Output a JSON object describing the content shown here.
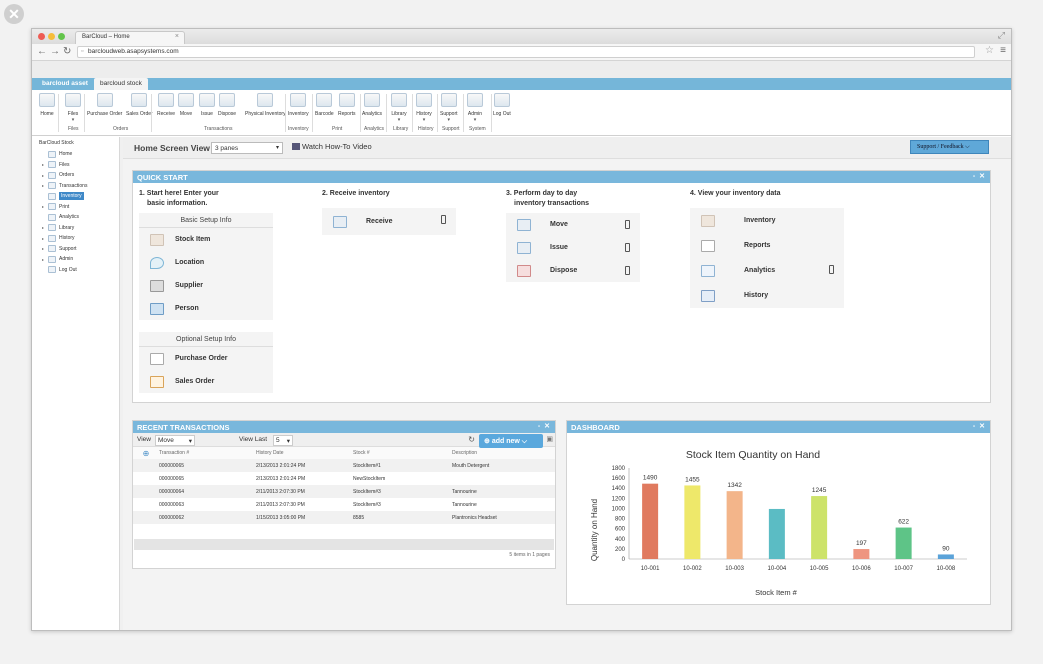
{
  "browser": {
    "tab_title": "BarCloud – Home",
    "url": "barcloudweb.asapsystems.com"
  },
  "app_tabs": [
    "barcloud asset",
    "barcloud stock"
  ],
  "ribbon": {
    "buttons": [
      {
        "label": "Home",
        "icon": "home-icon"
      },
      {
        "label": "Files",
        "icon": "folder-icon",
        "dropdown": "▾"
      },
      {
        "label": "Purchase Order",
        "icon": "document-icon"
      },
      {
        "label": "Sales Order",
        "icon": "dollar-document-icon"
      },
      {
        "label": "Receive",
        "icon": "receive-box-icon"
      },
      {
        "label": "Move",
        "icon": "move-box-icon"
      },
      {
        "label": "Issue",
        "icon": "issue-box-icon"
      },
      {
        "label": "Dispose",
        "icon": "dispose-icon"
      },
      {
        "label": "Physical Inventory",
        "icon": "physical-inventory-icon"
      },
      {
        "label": "Inventory",
        "icon": "inventory-box-icon"
      },
      {
        "label": "Barcode",
        "icon": "barcode-icon"
      },
      {
        "label": "Reports",
        "icon": "reports-icon"
      },
      {
        "label": "Analytics",
        "icon": "analytics-icon"
      },
      {
        "label": "Library",
        "icon": "library-icon",
        "dropdown": "▾"
      },
      {
        "label": "History",
        "icon": "history-book-icon",
        "dropdown": "▾"
      },
      {
        "label": "Support",
        "icon": "support-icon",
        "dropdown": "▾"
      },
      {
        "label": "Admin",
        "icon": "admin-user-icon",
        "dropdown": "▾"
      },
      {
        "label": "Log Out",
        "icon": "power-icon"
      }
    ],
    "groups": [
      "Files",
      "Orders",
      "Transactions",
      "Inventory",
      "Print",
      "Analytics",
      "Library",
      "History",
      "Support",
      "System"
    ]
  },
  "tree": {
    "root": "BarCloud Stock",
    "items": [
      {
        "label": "Home",
        "expand": ""
      },
      {
        "label": "Files",
        "expand": "▸"
      },
      {
        "label": "Orders",
        "expand": "▸"
      },
      {
        "label": "Transactions",
        "expand": "▸"
      },
      {
        "label": "Inventory",
        "expand": ""
      },
      {
        "label": "Print",
        "expand": "▸"
      },
      {
        "label": "Analytics",
        "expand": ""
      },
      {
        "label": "Library",
        "expand": "▸"
      },
      {
        "label": "History",
        "expand": "▸"
      },
      {
        "label": "Support",
        "expand": "▸"
      },
      {
        "label": "Admin",
        "expand": "▸"
      },
      {
        "label": "Log Out",
        "expand": ""
      }
    ],
    "selected": "Inventory"
  },
  "home_view": {
    "label": "Home Screen View",
    "select_value": "3 panes",
    "video_link": "Watch How-To Video",
    "support_button": "Support / Feedback"
  },
  "quick_start": {
    "title": "QUICK START",
    "col1": {
      "heading1": "1. Start here! Enter your",
      "heading2": "basic information.",
      "basic_title": "Basic Setup Info",
      "basic_items": [
        "Stock Item",
        "Location",
        "Supplier",
        "Person"
      ],
      "optional_title": "Optional Setup Info",
      "optional_items": [
        "Purchase Order",
        "Sales Order"
      ]
    },
    "col2": {
      "heading": "2. Receive inventory",
      "items": [
        "Receive"
      ]
    },
    "col3": {
      "heading1": "3. Perform day to day",
      "heading2": "inventory transactions",
      "items": [
        "Move",
        "Issue",
        "Dispose"
      ]
    },
    "col4": {
      "heading": "4. View your inventory data",
      "items": [
        "Inventory",
        "Reports",
        "Analytics",
        "History"
      ]
    }
  },
  "recent": {
    "title": "RECENT TRANSACTIONS",
    "view_label": "View",
    "view_value": "Move",
    "last_label": "View Last",
    "last_value": "5",
    "add_new": "add new",
    "columns": [
      "Transaction #",
      "History Date",
      "Stock #",
      "Description"
    ],
    "rows": [
      [
        "000000065",
        "2/13/2013 2:01:24 PM",
        "StockItem#1",
        "Mouth Detergent"
      ],
      [
        "000000065",
        "2/13/2013 2:01:24 PM",
        "NewStockItem",
        ""
      ],
      [
        "000000064",
        "2/11/2013 2:07:30 PM",
        "StockItem#3",
        "Tannourine"
      ],
      [
        "000000063",
        "2/11/2013 2:07:30 PM",
        "StockItem#3",
        "Tannourine"
      ],
      [
        "000000062",
        "1/15/2013 3:05:00 PM",
        "8585",
        "Plantronics Headset"
      ]
    ],
    "footer": "5 items in 1 pages"
  },
  "dashboard": {
    "title": "DASHBOARD"
  },
  "chart_data": {
    "type": "bar",
    "title": "Stock Item Quantity on Hand",
    "xlabel": "Stock Item #",
    "ylabel": "Quantity on Hand",
    "categories": [
      "10-001",
      "10-002",
      "10-003",
      "10-004",
      "10-005",
      "10-006",
      "10-007",
      "10-008"
    ],
    "values": [
      1490,
      1455,
      1342,
      990,
      1245,
      197,
      622,
      90
    ],
    "data_labels": [
      "1490",
      "1455",
      "1342",
      "",
      "1245",
      "197",
      "622",
      "90"
    ],
    "ylim": [
      0,
      1800
    ],
    "yticks": [
      0,
      200,
      400,
      600,
      800,
      1000,
      1200,
      1400,
      1600,
      1800
    ],
    "colors": [
      "#e07a5f",
      "#eee86a",
      "#f3b58a",
      "#5bbcc4",
      "#cde36a",
      "#ee9580",
      "#5ec487",
      "#5ba3d9"
    ]
  }
}
